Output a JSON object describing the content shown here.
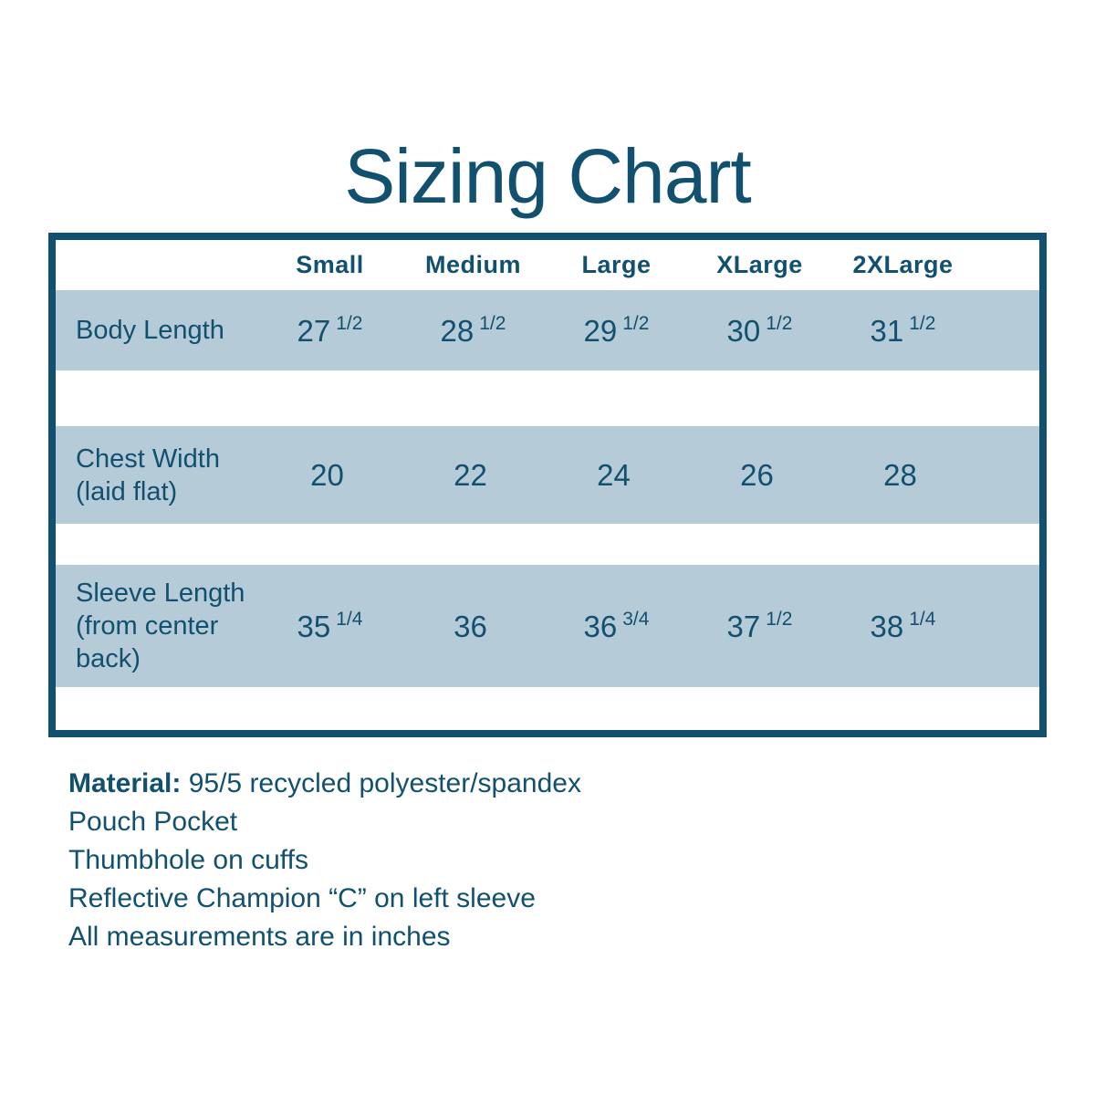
{
  "title": "Sizing Chart",
  "colors": {
    "accent": "#11506F",
    "stripe": "#B6CBD8",
    "row_gap": "#FFFFFF",
    "background": "#FFFFFF"
  },
  "table": {
    "columns": [
      "Small",
      "Medium",
      "Large",
      "XLarge",
      "2XLarge"
    ],
    "rows": [
      {
        "label": "Body Length",
        "label_lines": [
          "Body Length"
        ],
        "values": [
          {
            "whole": "27",
            "frac": "1/2"
          },
          {
            "whole": "28",
            "frac": "1/2"
          },
          {
            "whole": "29",
            "frac": "1/2"
          },
          {
            "whole": "30",
            "frac": "1/2"
          },
          {
            "whole": "31",
            "frac": "1/2"
          }
        ]
      },
      {
        "label": "Chest Width (laid flat)",
        "label_lines": [
          "Chest Width",
          "(laid flat)"
        ],
        "values": [
          {
            "whole": "20",
            "frac": ""
          },
          {
            "whole": "22",
            "frac": ""
          },
          {
            "whole": "24",
            "frac": ""
          },
          {
            "whole": "26",
            "frac": ""
          },
          {
            "whole": "28",
            "frac": ""
          }
        ]
      },
      {
        "label": "Sleeve Length (from center back)",
        "label_lines": [
          "Sleeve Length",
          "(from center",
          "back)"
        ],
        "values": [
          {
            "whole": "35",
            "frac": "1/4"
          },
          {
            "whole": "36",
            "frac": ""
          },
          {
            "whole": "36",
            "frac": "3/4"
          },
          {
            "whole": "37",
            "frac": "1/2"
          },
          {
            "whole": "38",
            "frac": "1/4"
          }
        ]
      }
    ]
  },
  "notes": {
    "material_label": "Material:",
    "material_value": "95/5 recycled polyester/spandex",
    "lines": [
      "Pouch Pocket",
      "Thumbhole on cuffs",
      "Reflective Champion “C” on left sleeve",
      "All measurements are in inches"
    ]
  },
  "chart_data": {
    "type": "table",
    "title": "Sizing Chart",
    "columns": [
      "Small",
      "Medium",
      "Large",
      "XLarge",
      "2XLarge"
    ],
    "rows": [
      {
        "label": "Body Length",
        "values": [
          27.5,
          28.5,
          29.5,
          30.5,
          31.5
        ]
      },
      {
        "label": "Chest Width (laid flat)",
        "values": [
          20,
          22,
          24,
          26,
          28
        ]
      },
      {
        "label": "Sleeve Length (from center back)",
        "values": [
          35.25,
          36,
          36.75,
          37.5,
          38.25
        ]
      }
    ],
    "units": "inches",
    "notes": [
      "Material: 95/5 recycled polyester/spandex",
      "Pouch Pocket",
      "Thumbhole on cuffs",
      "Reflective Champion “C” on left sleeve",
      "All measurements are in inches"
    ]
  }
}
